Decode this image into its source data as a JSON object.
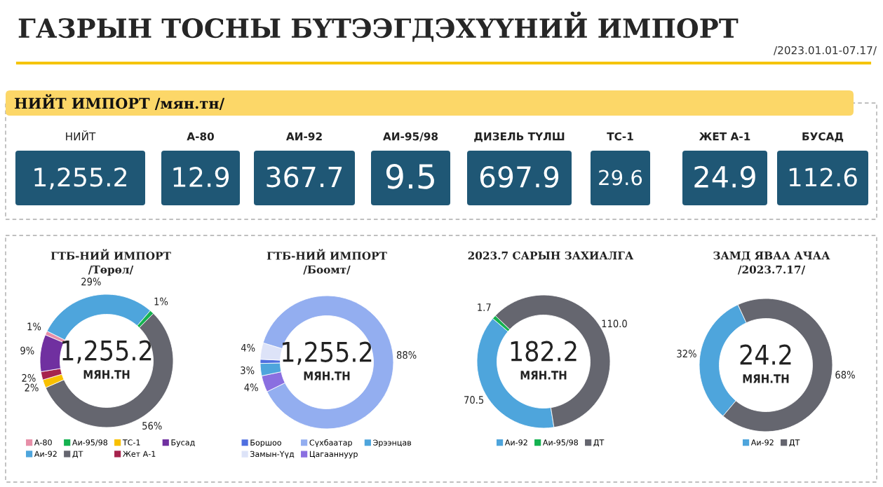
{
  "chart_data": [
    {
      "type": "other",
      "title": "ГАЗРЫН ТОСНЫ БҮТЭЭГДЭХҮҮНИЙ ИМПОРТ",
      "subtitle": "/2023.01.01-07.17/"
    },
    {
      "type": "other",
      "title": "НИЙТ ИМПОРТ /мян.тн/",
      "categories": [
        "НИЙТ",
        "А-80",
        "АИ-92",
        "АИ-95/98",
        "ДИЗЕЛЬ ТҮЛШ",
        "ТС-1",
        "ЖЕТ А-1",
        "БУСАД"
      ],
      "values": [
        1255.2,
        12.9,
        367.7,
        9.5,
        697.9,
        29.6,
        24.9,
        112.6
      ],
      "value_labels": [
        "1,255.2",
        "12.9",
        "367.7",
        "9.5",
        "697.9",
        "29.6",
        "24.9",
        "112.6"
      ],
      "color": "#1f5775"
    },
    {
      "type": "donut",
      "title": "ГТБ-НИЙ ИМПОРТ",
      "subtitle": "/Төрөл/",
      "categories": [
        "А-80",
        "Аи-92",
        "Аи-95/98",
        "ДТ",
        "ТС-1",
        "Жет А-1",
        "Бусад"
      ],
      "values": [
        1,
        29,
        1,
        56,
        2,
        2,
        9
      ],
      "colors": [
        "#e78fa8",
        "#4ea5dc",
        "#15b250",
        "#65666f",
        "#f8c000",
        "#a6234d",
        "#7030a0"
      ],
      "value_labels": [
        "1%",
        "29%",
        "1%",
        "56%",
        "2%",
        "2%",
        "9%"
      ],
      "annotations": [
        "1,255.2",
        "МЯН.ТН"
      ],
      "legend": "bottom"
    },
    {
      "type": "donut",
      "title": "ГТБ-НИЙ ИМПОРТ",
      "subtitle": "/Боомт/",
      "categories": [
        "Боршоо",
        "Замын-Үүд",
        "Сүхбаатар",
        "Цагааннуур",
        "Эрээнцав"
      ],
      "values": [
        1,
        4,
        88,
        4,
        3
      ],
      "colors": [
        "#4f6fe0",
        "#dde3f8",
        "#93aef0",
        "#8a6fe0",
        "#4ea5dc"
      ],
      "value_labels": [
        null,
        "4%",
        "88%",
        "4%",
        "3%"
      ],
      "annotations": [
        "1,255.2",
        "МЯН.ТН"
      ],
      "legend": "bottom"
    },
    {
      "type": "donut",
      "title": "2023.7 САРЫН ЗАХИАЛГА",
      "categories": [
        "Аи-92",
        "Аи-95/98",
        "ДТ"
      ],
      "values": [
        70.5,
        1.7,
        110.0
      ],
      "colors": [
        "#4ea5dc",
        "#15b250",
        "#65666f"
      ],
      "value_labels": [
        "70.5",
        "1.7",
        "110.0"
      ],
      "annotations": [
        "182.2",
        "МЯН.ТН"
      ],
      "legend": "bottom"
    },
    {
      "type": "donut",
      "title": "ЗАМД ЯВАА АЧАА",
      "subtitle": "/2023.7.17/",
      "categories": [
        "Аи-92",
        "ДТ"
      ],
      "values": [
        32,
        68
      ],
      "colors": [
        "#4ea5dc",
        "#65666f"
      ],
      "value_labels": [
        "32%",
        "68%"
      ],
      "annotations": [
        "24.2",
        "МЯН.ТН"
      ],
      "legend": "bottom"
    }
  ]
}
